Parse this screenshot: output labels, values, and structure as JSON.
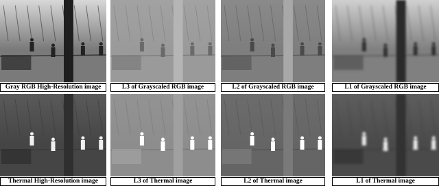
{
  "figure": {
    "panels": [
      {
        "caption": "Gray RGB High-Resolution image"
      },
      {
        "caption": "L3 of Grayscaled RGB image"
      },
      {
        "caption": "L2 of Grayscaled RGB image"
      },
      {
        "caption": "L1 of Grayscaled RGB image"
      },
      {
        "caption": "Thermal High-Resolution image"
      },
      {
        "caption": "L3 of Thermal image"
      },
      {
        "caption": "L2 of Thermal image"
      },
      {
        "caption": "L1 of Thermal image"
      }
    ]
  }
}
